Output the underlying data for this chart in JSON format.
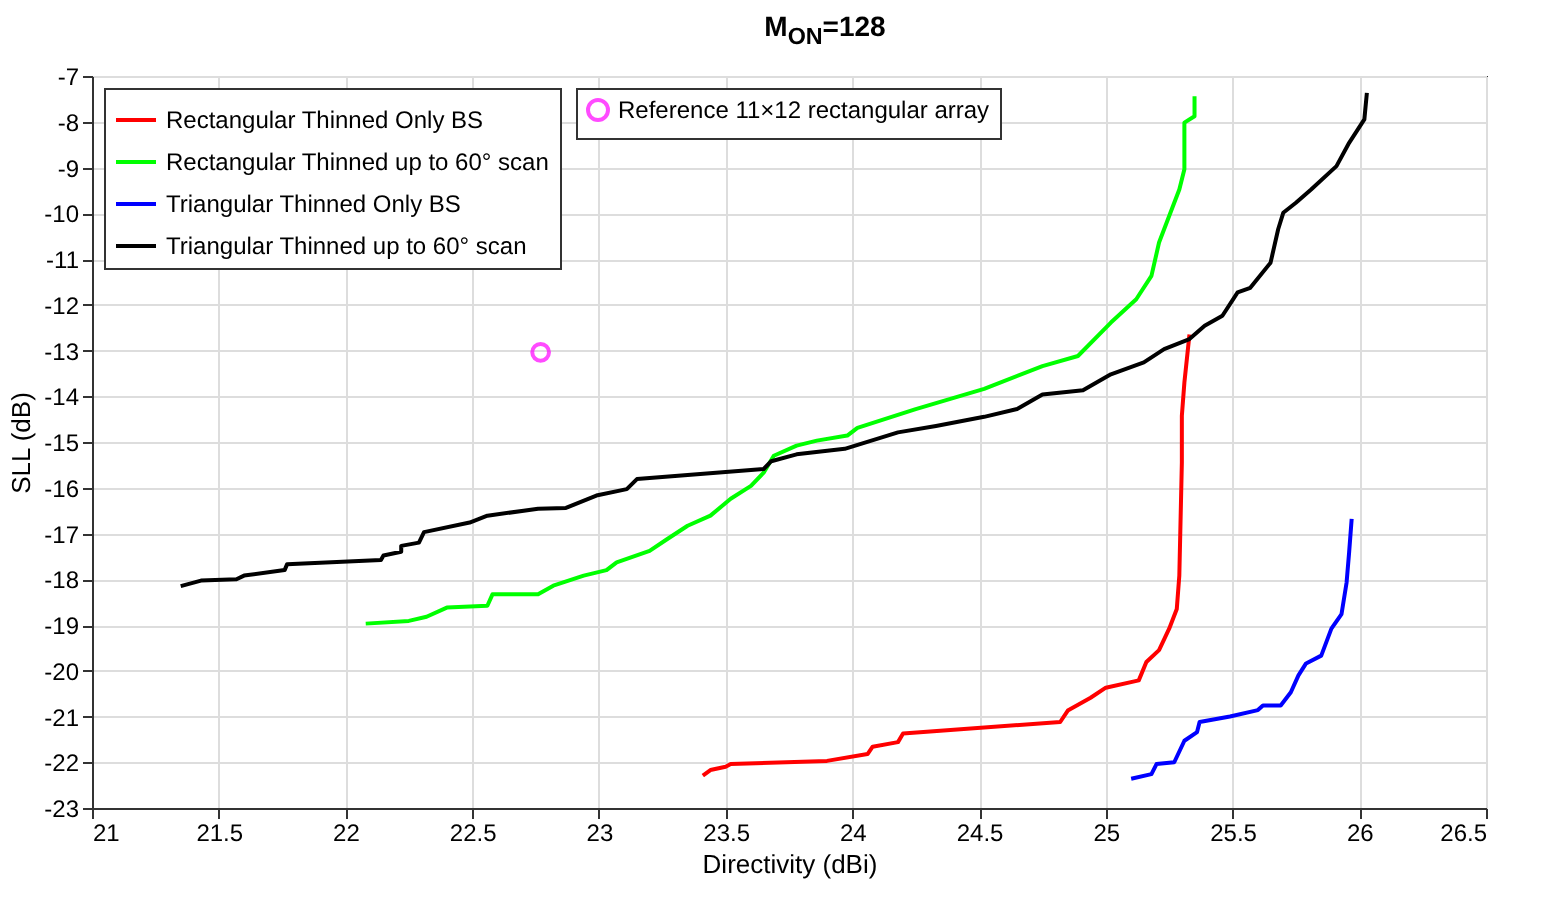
{
  "chart_data": {
    "type": "line",
    "title": "M$_{ON}$=128",
    "xlabel": "Directivity (dBi)",
    "ylabel": "SLL (dB)",
    "xlim": [
      21,
      26.5
    ],
    "xticks": [
      21,
      21.5,
      22,
      22.5,
      23,
      23.5,
      24,
      24.5,
      25,
      25.5,
      26,
      26.5
    ],
    "ylim": [
      -23,
      -7
    ],
    "yticks": [
      -23,
      -22,
      -21,
      -20,
      -19,
      -18,
      -17,
      -16,
      -15,
      -14,
      -13,
      -12,
      -11,
      -10,
      -9,
      -8,
      -7
    ],
    "grid": true,
    "legend": "top left",
    "series": [
      {
        "name": "Rectangular Thinned Only BS",
        "color": "#ff0000",
        "x": [
          23.41,
          23.44,
          23.5,
          23.52,
          23.9,
          24.06,
          24.08,
          24.18,
          24.2,
          24.82,
          24.85,
          24.94,
          25.0,
          25.13,
          25.16,
          25.21,
          25.25,
          25.28,
          25.29,
          25.3,
          25.3,
          25.31,
          25.33
        ],
        "values": [
          -22.29,
          -22.17,
          -22.1,
          -22.04,
          -21.97,
          -21.82,
          -21.66,
          -21.56,
          -21.37,
          -21.12,
          -20.87,
          -20.59,
          -20.37,
          -20.21,
          -19.81,
          -19.55,
          -19.08,
          -18.65,
          -17.92,
          -15.45,
          -14.43,
          -13.7,
          -12.65
        ]
      },
      {
        "name": "Rectangular Thinned up to 60° scan",
        "color": "#00ff00",
        "x": [
          22.08,
          22.25,
          22.32,
          22.4,
          22.56,
          22.58,
          22.76,
          22.82,
          22.94,
          23.03,
          23.07,
          23.2,
          23.27,
          23.35,
          23.44,
          23.52,
          23.6,
          23.65,
          23.69,
          23.78,
          23.86,
          23.98,
          24.02,
          24.25,
          24.52,
          24.75,
          24.89,
          25.02,
          25.12,
          25.18,
          25.21,
          25.25,
          25.29,
          25.31,
          25.31,
          25.35,
          25.35
        ],
        "values": [
          -18.97,
          -18.91,
          -18.82,
          -18.62,
          -18.58,
          -18.33,
          -18.33,
          -18.14,
          -17.92,
          -17.8,
          -17.63,
          -17.38,
          -17.12,
          -16.83,
          -16.61,
          -16.24,
          -15.96,
          -15.67,
          -15.3,
          -15.08,
          -14.97,
          -14.86,
          -14.69,
          -14.28,
          -13.84,
          -13.34,
          -13.12,
          -12.39,
          -11.88,
          -11.37,
          -10.64,
          -10.06,
          -9.48,
          -9.04,
          -8.02,
          -7.88,
          -7.44
        ]
      },
      {
        "name": "Triangular Thinned Only BS",
        "color": "#0000ff",
        "x": [
          25.1,
          25.18,
          25.2,
          25.27,
          25.31,
          25.36,
          25.37,
          25.49,
          25.6,
          25.62,
          25.69,
          25.73,
          25.76,
          25.79,
          25.85,
          25.89,
          25.93,
          25.95,
          25.96,
          25.97
        ],
        "values": [
          -22.36,
          -22.26,
          -22.04,
          -22.0,
          -21.53,
          -21.34,
          -21.12,
          -21.0,
          -20.86,
          -20.76,
          -20.76,
          -20.47,
          -20.1,
          -19.84,
          -19.67,
          -19.08,
          -18.76,
          -18.07,
          -17.41,
          -16.68
        ]
      },
      {
        "name": "Triangular Thinned up to 60° scan",
        "color": "#000000",
        "x": [
          21.35,
          21.43,
          21.57,
          21.6,
          21.76,
          21.77,
          22.14,
          22.15,
          22.22,
          22.22,
          22.29,
          22.31,
          22.49,
          22.56,
          22.76,
          22.87,
          22.99,
          23.11,
          23.15,
          23.65,
          23.68,
          23.78,
          23.97,
          24.18,
          24.33,
          24.52,
          24.65,
          24.75,
          24.91,
          25.02,
          25.15,
          25.23,
          25.33,
          25.39,
          25.46,
          25.52,
          25.57,
          25.65,
          25.68,
          25.7,
          25.75,
          25.81,
          25.91,
          25.96,
          26.02,
          26.03
        ],
        "values": [
          -18.15,
          -18.03,
          -18.0,
          -17.92,
          -17.8,
          -17.67,
          -17.58,
          -17.48,
          -17.4,
          -17.27,
          -17.2,
          -16.97,
          -16.76,
          -16.61,
          -16.46,
          -16.44,
          -16.17,
          -16.03,
          -15.81,
          -15.59,
          -15.42,
          -15.27,
          -15.15,
          -14.79,
          -14.65,
          -14.45,
          -14.28,
          -13.96,
          -13.87,
          -13.52,
          -13.26,
          -12.97,
          -12.75,
          -12.46,
          -12.24,
          -11.73,
          -11.63,
          -11.08,
          -10.35,
          -9.99,
          -9.77,
          -9.48,
          -8.97,
          -8.46,
          -7.95,
          -7.37
        ]
      },
      {
        "name": "Reference 11×12 rectangular array",
        "type": "scatter",
        "marker": "circle",
        "color": "#ff00ff",
        "x": [
          22.77
        ],
        "values": [
          -13.04
        ]
      }
    ]
  }
}
